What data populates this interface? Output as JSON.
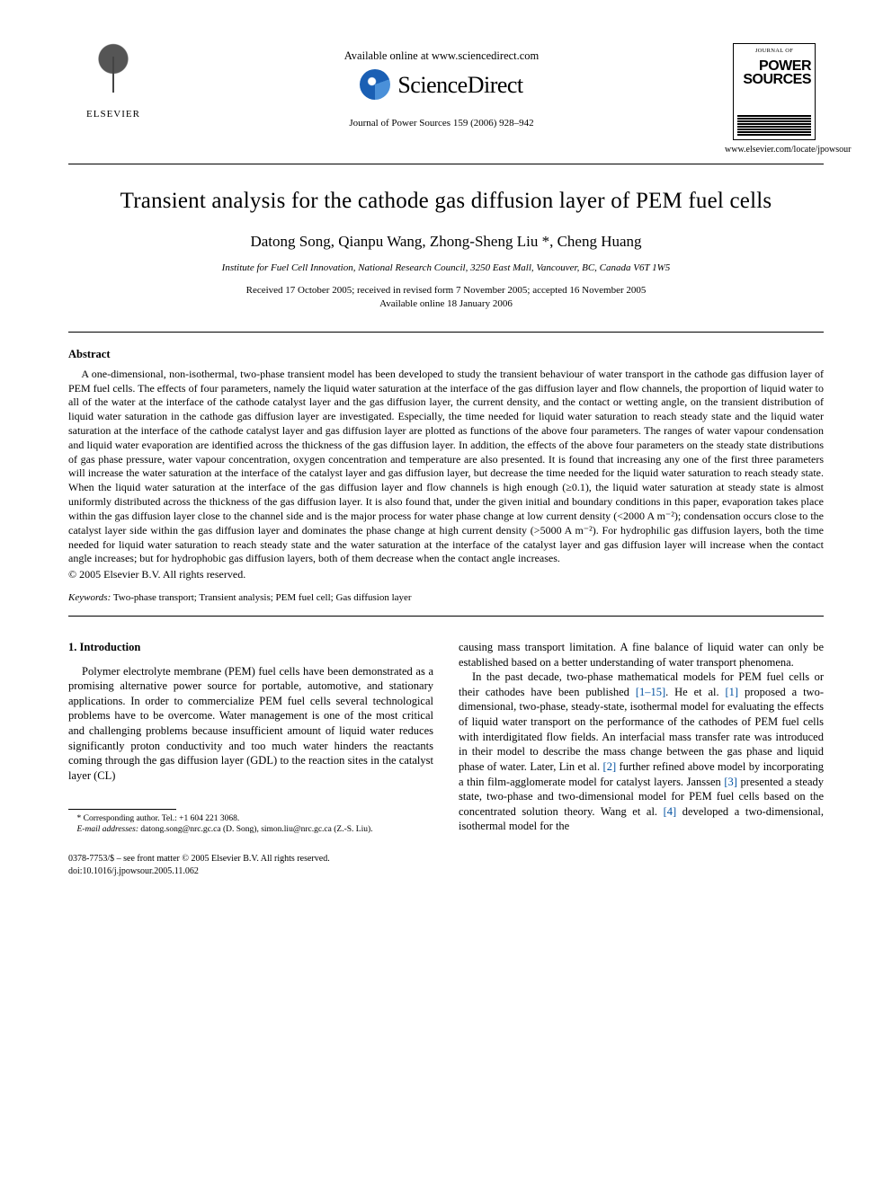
{
  "header": {
    "elsevier_label": "ELSEVIER",
    "available_line": "Available online at www.sciencedirect.com",
    "sd_brand": "ScienceDirect",
    "journal_citation": "Journal of Power Sources 159 (2006) 928–942",
    "ps_top": "JOURNAL OF",
    "ps_title_1": "POWER",
    "ps_title_2": "SOURCES",
    "ps_url": "www.elsevier.com/locate/jpowsour"
  },
  "title": "Transient analysis for the cathode gas diffusion layer of PEM fuel cells",
  "authors": "Datong Song, Qianpu Wang, Zhong-Sheng Liu *, Cheng Huang",
  "affiliation": "Institute for Fuel Cell Innovation, National Research Council, 3250 East Mall, Vancouver, BC, Canada V6T 1W5",
  "dates_line1": "Received 17 October 2005; received in revised form 7 November 2005; accepted 16 November 2005",
  "dates_line2": "Available online 18 January 2006",
  "abstract_head": "Abstract",
  "abstract_body": "A one-dimensional, non-isothermal, two-phase transient model has been developed to study the transient behaviour of water transport in the cathode gas diffusion layer of PEM fuel cells. The effects of four parameters, namely the liquid water saturation at the interface of the gas diffusion layer and flow channels, the proportion of liquid water to all of the water at the interface of the cathode catalyst layer and the gas diffusion layer, the current density, and the contact or wetting angle, on the transient distribution of liquid water saturation in the cathode gas diffusion layer are investigated. Especially, the time needed for liquid water saturation to reach steady state and the liquid water saturation at the interface of the cathode catalyst layer and gas diffusion layer are plotted as functions of the above four parameters. The ranges of water vapour condensation and liquid water evaporation are identified across the thickness of the gas diffusion layer. In addition, the effects of the above four parameters on the steady state distributions of gas phase pressure, water vapour concentration, oxygen concentration and temperature are also presented. It is found that increasing any one of the first three parameters will increase the water saturation at the interface of the catalyst layer and gas diffusion layer, but decrease the time needed for the liquid water saturation to reach steady state. When the liquid water saturation at the interface of the gas diffusion layer and flow channels is high enough (≥0.1), the liquid water saturation at steady state is almost uniformly distributed across the thickness of the gas diffusion layer. It is also found that, under the given initial and boundary conditions in this paper, evaporation takes place within the gas diffusion layer close to the channel side and is the major process for water phase change at low current density (<2000 A m⁻²); condensation occurs close to the catalyst layer side within the gas diffusion layer and dominates the phase change at high current density (>5000 A m⁻²). For hydrophilic gas diffusion layers, both the time needed for liquid water saturation to reach steady state and the water saturation at the interface of the catalyst layer and gas diffusion layer will increase when the contact angle increases; but for hydrophobic gas diffusion layers, both of them decrease when the contact angle increases.",
  "copyright": "© 2005 Elsevier B.V. All rights reserved.",
  "keywords_label": "Keywords:",
  "keywords": "Two-phase transport; Transient analysis; PEM fuel cell; Gas diffusion layer",
  "section1_head": "1.  Introduction",
  "col_left_p1": "Polymer electrolyte membrane (PEM) fuel cells have been demonstrated as a promising alternative power source for portable, automotive, and stationary applications. In order to commercialize PEM fuel cells several technological problems have to be overcome. Water management is one of the most critical and challenging problems because insufficient amount of liquid water reduces significantly proton conductivity and too much water hinders the reactants coming through the gas diffusion layer (GDL) to the reaction sites in the catalyst layer (CL)",
  "col_right_p1": "causing mass transport limitation. A fine balance of liquid water can only be established based on a better understanding of water transport phenomena.",
  "col_right_p2a": "In the past decade, two-phase mathematical models for PEM fuel cells or their cathodes have been published ",
  "ref_1_15": "[1–15]",
  "col_right_p2b": ". He et al. ",
  "ref_1": "[1]",
  "col_right_p2c": " proposed a two-dimensional, two-phase, steady-state, isothermal model for evaluating the effects of liquid water transport on the performance of the cathodes of PEM fuel cells with interdigitated flow fields. An interfacial mass transfer rate was introduced in their model to describe the mass change between the gas phase and liquid phase of water. Later, Lin et al. ",
  "ref_2": "[2]",
  "col_right_p2d": " further refined above model by incorporating a thin film-agglomerate model for catalyst layers. Janssen ",
  "ref_3": "[3]",
  "col_right_p2e": " presented a steady state, two-phase and two-dimensional model for PEM fuel cells based on the concentrated solution theory. Wang et al. ",
  "ref_4": "[4]",
  "col_right_p2f": " developed a two-dimensional, isothermal model for the",
  "footnote_corr": "* Corresponding author. Tel.: +1 604 221 3068.",
  "footnote_email_label": "E-mail addresses:",
  "footnote_email_body": " datong.song@nrc.gc.ca (D. Song), simon.liu@nrc.gc.ca (Z.-S. Liu).",
  "doi_line1": "0378-7753/$ – see front matter © 2005 Elsevier B.V. All rights reserved.",
  "doi_line2": "doi:10.1016/j.jpowsour.2005.11.062"
}
